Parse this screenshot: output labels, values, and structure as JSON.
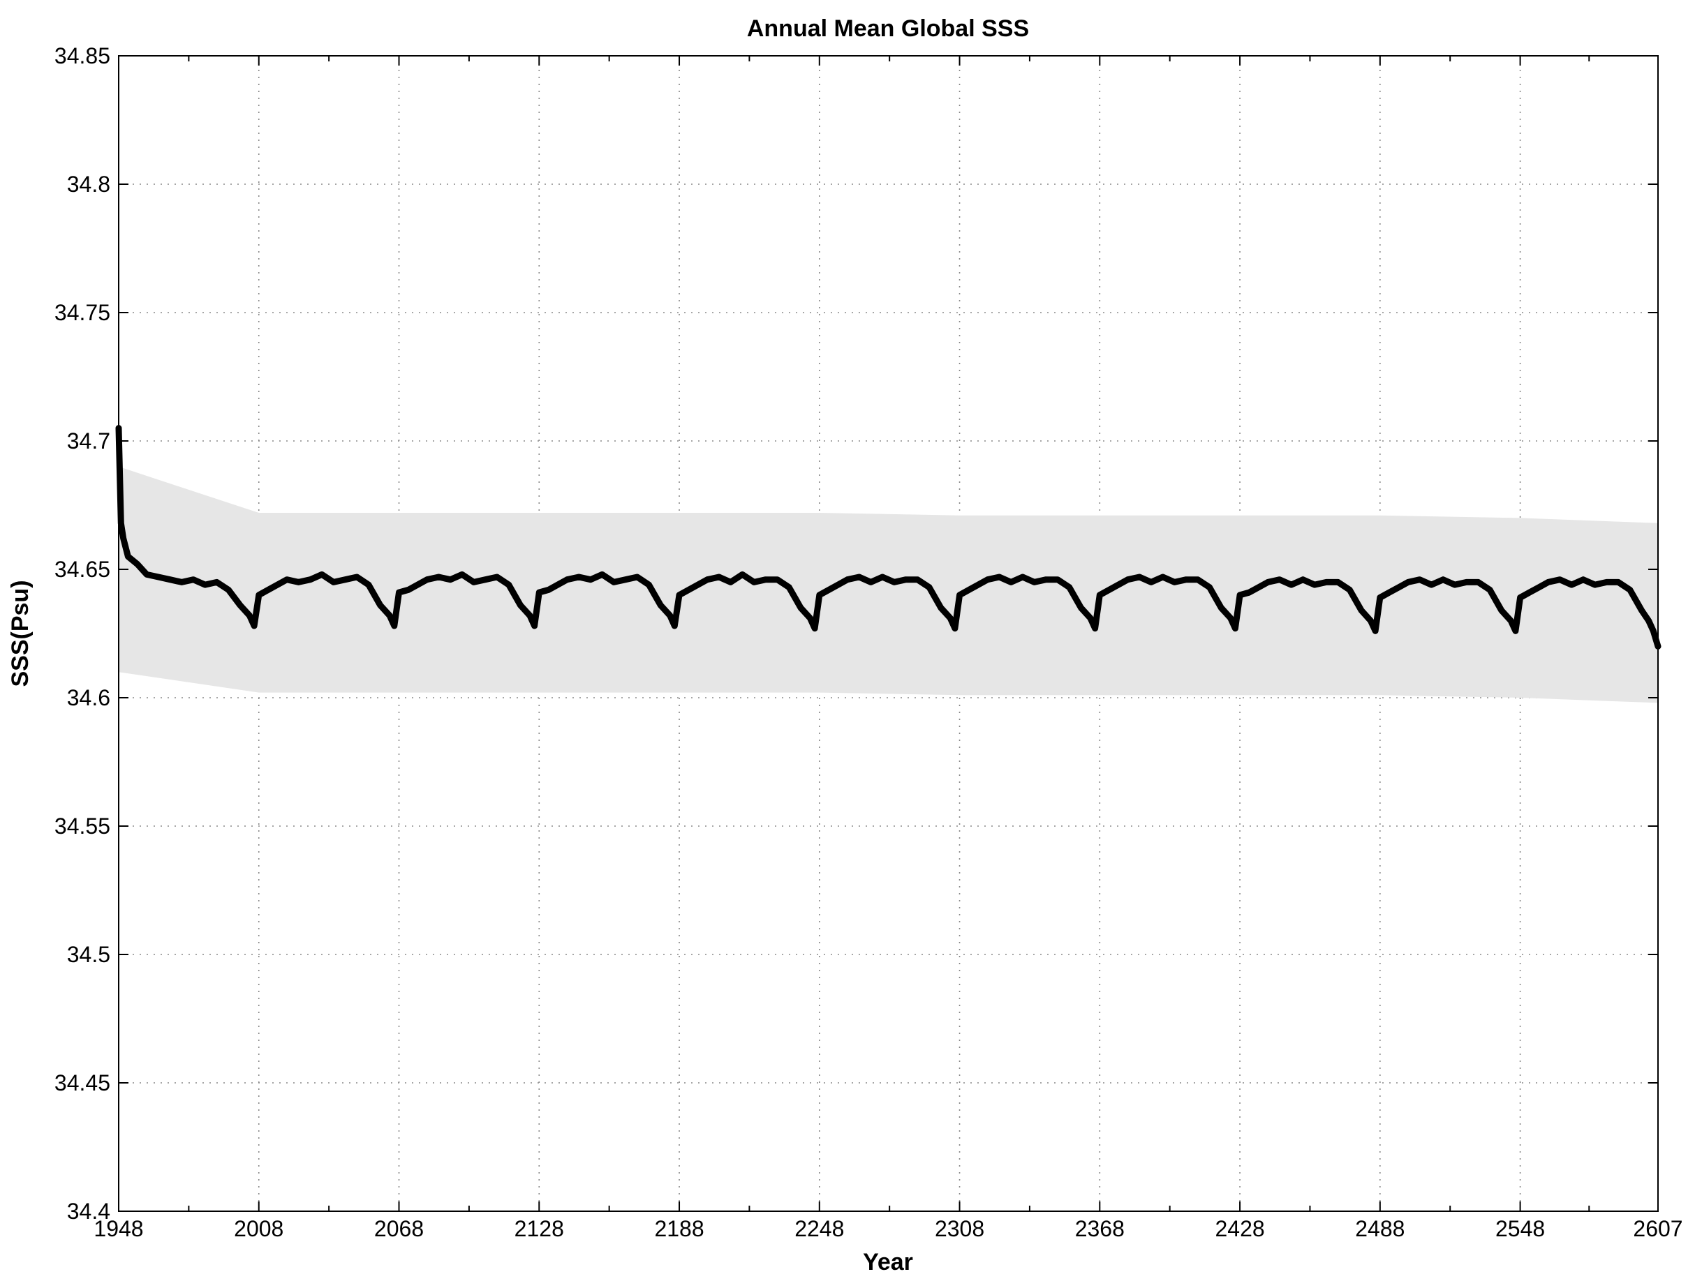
{
  "chart_data": {
    "type": "line",
    "title": "Annual Mean Global SSS",
    "xlabel": "Year",
    "ylabel": "SSS(Psu)",
    "xlim": [
      1948,
      2607
    ],
    "ylim": [
      34.4,
      34.85
    ],
    "grid": true,
    "x_ticks": [
      "1948",
      "2008",
      "2068",
      "2128",
      "2188",
      "2248",
      "2308",
      "2368",
      "2428",
      "2488",
      "2548",
      "2607"
    ],
    "y_ticks": [
      "34.4",
      "34.45",
      "34.5",
      "34.55",
      "34.6",
      "34.65",
      "34.7",
      "34.75",
      "34.8",
      "34.85"
    ],
    "series": [
      {
        "kind": "line",
        "color": "#000000",
        "x": [
          1948,
          1949,
          1950,
          1952,
          1956,
          1960,
          1965,
          1970,
          1975,
          1980,
          1985,
          1990,
          1995,
          2000,
          2004,
          2006,
          2008,
          2012,
          2016,
          2020,
          2025,
          2030,
          2035,
          2040,
          2045,
          2050,
          2055,
          2060,
          2064,
          2066,
          2068,
          2072,
          2076,
          2080,
          2085,
          2090,
          2095,
          2100,
          2105,
          2110,
          2115,
          2120,
          2124,
          2126,
          2128,
          2132,
          2136,
          2140,
          2145,
          2150,
          2155,
          2160,
          2165,
          2170,
          2175,
          2180,
          2184,
          2186,
          2188,
          2192,
          2196,
          2200,
          2205,
          2210,
          2215,
          2220,
          2225,
          2230,
          2235,
          2240,
          2244,
          2246,
          2248,
          2252,
          2256,
          2260,
          2265,
          2270,
          2275,
          2280,
          2285,
          2290,
          2295,
          2300,
          2304,
          2306,
          2308,
          2312,
          2316,
          2320,
          2325,
          2330,
          2335,
          2340,
          2345,
          2350,
          2355,
          2360,
          2364,
          2366,
          2368,
          2372,
          2376,
          2380,
          2385,
          2390,
          2395,
          2400,
          2405,
          2410,
          2415,
          2420,
          2424,
          2426,
          2428,
          2432,
          2436,
          2440,
          2445,
          2450,
          2455,
          2460,
          2465,
          2470,
          2475,
          2480,
          2484,
          2486,
          2488,
          2492,
          2496,
          2500,
          2505,
          2510,
          2515,
          2520,
          2525,
          2530,
          2535,
          2540,
          2544,
          2546,
          2548,
          2552,
          2556,
          2560,
          2565,
          2570,
          2575,
          2580,
          2585,
          2590,
          2595,
          2600,
          2603,
          2605,
          2607
        ],
        "y": [
          34.705,
          34.668,
          34.662,
          34.655,
          34.652,
          34.648,
          34.647,
          34.646,
          34.645,
          34.646,
          34.644,
          34.645,
          34.642,
          34.636,
          34.632,
          34.628,
          34.64,
          34.642,
          34.644,
          34.646,
          34.645,
          34.646,
          34.648,
          34.645,
          34.646,
          34.647,
          34.644,
          34.636,
          34.632,
          34.628,
          34.641,
          34.642,
          34.644,
          34.646,
          34.647,
          34.646,
          34.648,
          34.645,
          34.646,
          34.647,
          34.644,
          34.636,
          34.632,
          34.628,
          34.641,
          34.642,
          34.644,
          34.646,
          34.647,
          34.646,
          34.648,
          34.645,
          34.646,
          34.647,
          34.644,
          34.636,
          34.632,
          34.628,
          34.64,
          34.642,
          34.644,
          34.646,
          34.647,
          34.645,
          34.648,
          34.645,
          34.646,
          34.646,
          34.643,
          34.635,
          34.631,
          34.627,
          34.64,
          34.642,
          34.644,
          34.646,
          34.647,
          34.645,
          34.647,
          34.645,
          34.646,
          34.646,
          34.643,
          34.635,
          34.631,
          34.627,
          34.64,
          34.642,
          34.644,
          34.646,
          34.647,
          34.645,
          34.647,
          34.645,
          34.646,
          34.646,
          34.643,
          34.635,
          34.631,
          34.627,
          34.64,
          34.642,
          34.644,
          34.646,
          34.647,
          34.645,
          34.647,
          34.645,
          34.646,
          34.646,
          34.643,
          34.635,
          34.631,
          34.627,
          34.64,
          34.641,
          34.643,
          34.645,
          34.646,
          34.644,
          34.646,
          34.644,
          34.645,
          34.645,
          34.642,
          34.634,
          34.63,
          34.626,
          34.639,
          34.641,
          34.643,
          34.645,
          34.646,
          34.644,
          34.646,
          34.644,
          34.645,
          34.645,
          34.642,
          34.634,
          34.63,
          34.626,
          34.639,
          34.641,
          34.643,
          34.645,
          34.646,
          34.644,
          34.646,
          34.644,
          34.645,
          34.645,
          34.642,
          34.634,
          34.63,
          34.626,
          34.62
        ]
      },
      {
        "kind": "band",
        "color": "#e6e6e6",
        "x": [
          1948,
          2008,
          2068,
          2128,
          2188,
          2248,
          2308,
          2368,
          2428,
          2488,
          2548,
          2607
        ],
        "upper": [
          34.69,
          34.672,
          34.672,
          34.672,
          34.672,
          34.672,
          34.671,
          34.671,
          34.671,
          34.671,
          34.67,
          34.668
        ],
        "lower": [
          34.61,
          34.602,
          34.602,
          34.602,
          34.602,
          34.602,
          34.601,
          34.601,
          34.601,
          34.601,
          34.6,
          34.598
        ]
      }
    ]
  }
}
